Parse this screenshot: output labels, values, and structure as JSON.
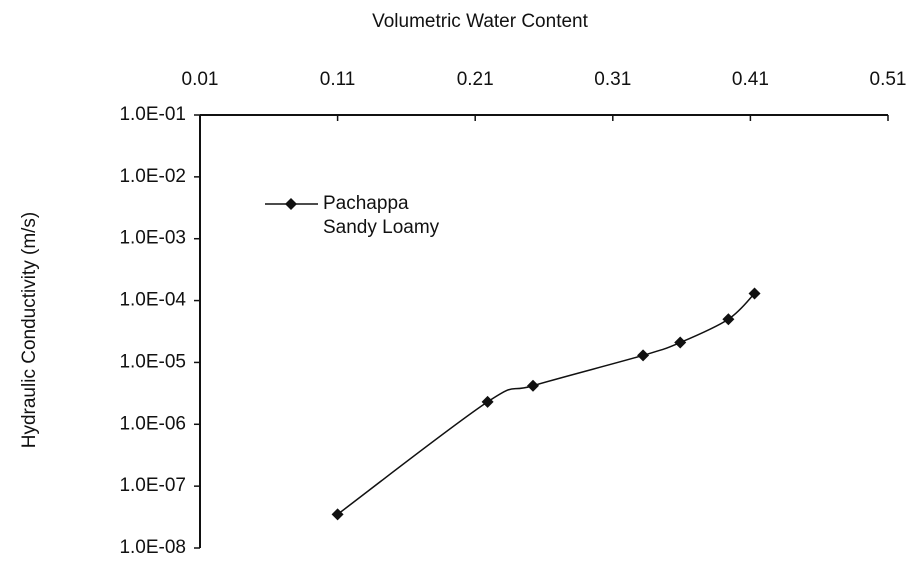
{
  "chart_data": {
    "type": "line",
    "x_label": "Volumetric Water Content",
    "y_label": "Hydraulic Conductivity (m/s)",
    "xlim": [
      0.01,
      0.51
    ],
    "xticks": [
      0.01,
      0.11,
      0.21,
      0.31,
      0.41,
      0.51
    ],
    "ylim": [
      1e-08,
      0.1
    ],
    "y_log": true,
    "yticks": [
      {
        "value": 0.1,
        "label": "1.0E-01"
      },
      {
        "value": 0.01,
        "label": "1.0E-02"
      },
      {
        "value": 0.001,
        "label": "1.0E-03"
      },
      {
        "value": 0.0001,
        "label": "1.0E-04"
      },
      {
        "value": 1e-05,
        "label": "1.0E-05"
      },
      {
        "value": 1e-06,
        "label": "1.0E-06"
      },
      {
        "value": 1e-07,
        "label": "1.0E-07"
      },
      {
        "value": 1e-08,
        "label": "1.0E-08"
      }
    ],
    "x_axis_position": "top",
    "legend": "upper left",
    "x": [
      0.11,
      0.219,
      0.252,
      0.332,
      0.359,
      0.394,
      0.413
    ],
    "series": [
      {
        "name": "Pachappa Sandy Loamy",
        "color": "#111111",
        "values": [
          3.5e-08,
          2.3e-06,
          4.2e-06,
          1.3e-05,
          2.1e-05,
          5e-05,
          0.00013
        ]
      }
    ]
  }
}
